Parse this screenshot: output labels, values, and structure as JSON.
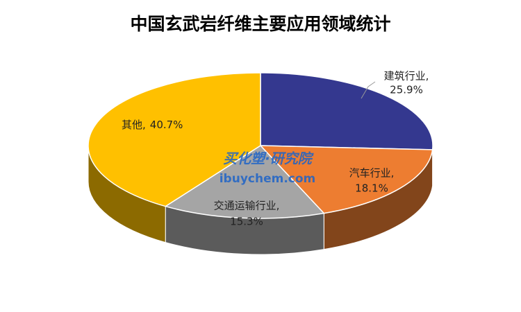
{
  "chart_data": {
    "type": "pie3d",
    "title": "中国玄武岩纤维主要应用领域统计",
    "categories": [
      "建筑行业,",
      "汽车行业,",
      "交通运输行业,",
      "其他,"
    ],
    "values": [
      25.9,
      18.1,
      15.3,
      40.7
    ],
    "value_labels": [
      "25.9%",
      "18.1%",
      "15.3%",
      "40.7%"
    ],
    "colors": [
      "#34388f",
      "#ed7d31",
      "#a5a5a5",
      "#ffc000"
    ],
    "watermark": [
      "买化塑·研究院",
      "ibuychem.com"
    ]
  }
}
